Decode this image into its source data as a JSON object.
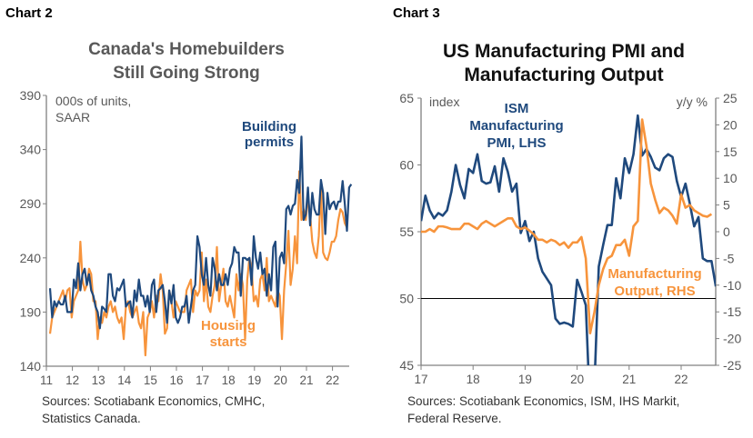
{
  "chart_data": [
    {
      "label": "Chart 2",
      "type": "line",
      "title": "Canada's Homebuilders Still Going Strong",
      "unit_note": [
        "000s of units,",
        "SAAR"
      ],
      "ylim": [
        140,
        390
      ],
      "y_ticks": [
        "390",
        "340",
        "290",
        "240",
        "190",
        "140"
      ],
      "x_ticks": [
        "11",
        "12",
        "13",
        "14",
        "15",
        "16",
        "17",
        "18",
        "19",
        "20",
        "21",
        "22"
      ],
      "x_start": "2011-01",
      "frequency": "monthly",
      "colors": {
        "building_permits": "#1f497d",
        "housing_starts": "#f7943c"
      },
      "series": [
        {
          "name": "Building permits",
          "label_lines": [
            "Building",
            "permits"
          ],
          "values": [
            212,
            185,
            200,
            195,
            200,
            197,
            197,
            205,
            190,
            190,
            190,
            220,
            212,
            235,
            210,
            225,
            230,
            215,
            225,
            210,
            205,
            195,
            190,
            175,
            195,
            193,
            190,
            225,
            225,
            205,
            200,
            212,
            210,
            215,
            220,
            195,
            198,
            200,
            185,
            210,
            200,
            220,
            205,
            205,
            195,
            205,
            190,
            215,
            220,
            190,
            210,
            212,
            215,
            200,
            180,
            210,
            198,
            215,
            185,
            180,
            185,
            195,
            195,
            205,
            180,
            195,
            210,
            215,
            260,
            250,
            225,
            215,
            240,
            215,
            205,
            240,
            230,
            210,
            225,
            215,
            215,
            225,
            215,
            230,
            235,
            250,
            245,
            245,
            205,
            240,
            240,
            238,
            240,
            215,
            260,
            240,
            230,
            245,
            225,
            230,
            205,
            225,
            210,
            250,
            255,
            195,
            240,
            245,
            235,
            285,
            288,
            280,
            288,
            290,
            312,
            300,
            352,
            275,
            280,
            305,
            270,
            300,
            285,
            280,
            280,
            312,
            300,
            262,
            300,
            285,
            290,
            292,
            285,
            292,
            292,
            311,
            290,
            265,
            305,
            308
          ]
        },
        {
          "name": "Housing starts",
          "label_lines": [
            "Housing",
            "starts"
          ],
          "values": [
            170,
            185,
            190,
            195,
            200,
            205,
            210,
            200,
            210,
            212,
            185,
            200,
            205,
            210,
            255,
            220,
            210,
            215,
            230,
            225,
            200,
            200,
            165,
            185,
            180,
            190,
            185,
            195,
            200,
            190,
            195,
            185,
            180,
            185,
            165,
            195,
            200,
            190,
            185,
            190,
            195,
            180,
            175,
            190,
            150,
            185,
            190,
            200,
            185,
            205,
            200,
            225,
            210,
            170,
            175,
            210,
            200,
            185,
            200,
            195,
            190,
            190,
            190,
            210,
            215,
            220,
            190,
            210,
            205,
            210,
            245,
            200,
            220,
            195,
            190,
            205,
            215,
            250,
            200,
            215,
            230,
            200,
            195,
            205,
            195,
            185,
            225,
            210,
            225,
            215,
            165,
            220,
            240,
            230,
            200,
            205,
            195,
            220,
            225,
            210,
            240,
            200,
            205,
            200,
            195,
            210,
            205,
            165,
            210,
            235,
            265,
            215,
            230,
            260,
            235,
            320,
            275,
            285,
            275,
            295,
            280,
            255,
            245,
            240,
            260,
            305,
            245,
            240,
            238,
            245,
            255,
            255,
            260,
            275,
            285,
            282,
            272,
            268
          ]
        }
      ],
      "sources": [
        "Sources: Scotiabank Economics, CMHC,",
        "Statistics Canada."
      ]
    },
    {
      "label": "Chart 3",
      "type": "line",
      "title": "US Manufacturing PMI and Manufacturing Output",
      "left_axis": {
        "unit": "index",
        "ylim": [
          45,
          65
        ],
        "ticks": [
          "65",
          "60",
          "55",
          "50",
          "45"
        ]
      },
      "right_axis": {
        "unit": "y/y %",
        "ylim": [
          -25,
          25
        ],
        "ticks": [
          "25",
          "20",
          "15",
          "10",
          "5",
          "0",
          "-5",
          "-10",
          "-15",
          "-20",
          "-25"
        ]
      },
      "reference_line": 50,
      "x_ticks": [
        "17",
        "18",
        "19",
        "20",
        "21",
        "22"
      ],
      "x_start": "2017-01",
      "frequency": "monthly",
      "colors": {
        "pmi": "#1f497d",
        "output": "#f7943c",
        "reference": "#000000"
      },
      "series": [
        {
          "name": "ISM Manufacturing PMI, LHS",
          "label_lines": [
            "ISM",
            "Manufacturing",
            "PMI, LHS"
          ],
          "axis": "left",
          "values": [
            55.8,
            57.7,
            56.6,
            56.0,
            56.4,
            56.2,
            56.6,
            58.0,
            60.0,
            58.5,
            57.5,
            59.7,
            59.4,
            60.8,
            58.8,
            58.6,
            58.7,
            59.9,
            58.0,
            60.5,
            59.5,
            58.0,
            58.6,
            54.9,
            55.8,
            54.3,
            55.0,
            53.0,
            52.0,
            51.5,
            51.0,
            48.5,
            48.1,
            48.2,
            48.1,
            47.9,
            51.4,
            50.5,
            49.5,
            41.5,
            43.5,
            52.4,
            54.0,
            55.5,
            55.5,
            59.0,
            57.5,
            60.5,
            59.4,
            60.8,
            63.7,
            60.7,
            61.2,
            60.6,
            59.8,
            59.6,
            60.5,
            60.8,
            60.6,
            58.8,
            57.6,
            58.6,
            57.1,
            55.4,
            56.1,
            53.0,
            52.8,
            52.8,
            50.9
          ]
        },
        {
          "name": "Manufacturing Output, RHS",
          "label_lines": [
            "Manufacturing",
            "Output, RHS"
          ],
          "axis": "right",
          "values": [
            0,
            0,
            0.5,
            0,
            1,
            1,
            0.8,
            0.5,
            0.5,
            0.5,
            1.5,
            1.5,
            1,
            0.5,
            1.5,
            2,
            1.5,
            1,
            1.5,
            2,
            2.5,
            2.5,
            1,
            0.5,
            0.8,
            0.2,
            -0.5,
            -1.5,
            -1.5,
            -2,
            -1.5,
            -1.8,
            -2.5,
            -2,
            -3,
            -2,
            -2,
            -1,
            -5,
            -19,
            -15,
            -10,
            -7,
            -5,
            -4.5,
            -2.5,
            -2.5,
            -1.5,
            -4.5,
            1,
            2,
            21,
            16,
            9,
            6,
            3.5,
            4.5,
            4,
            3,
            1.5,
            7,
            4.5,
            5,
            4,
            3.5,
            3,
            2.8,
            3.3
          ]
        }
      ],
      "sources": [
        "Sources: Scotiabank Economics, ISM, IHS Markit,",
        "Federal Reserve."
      ]
    }
  ]
}
